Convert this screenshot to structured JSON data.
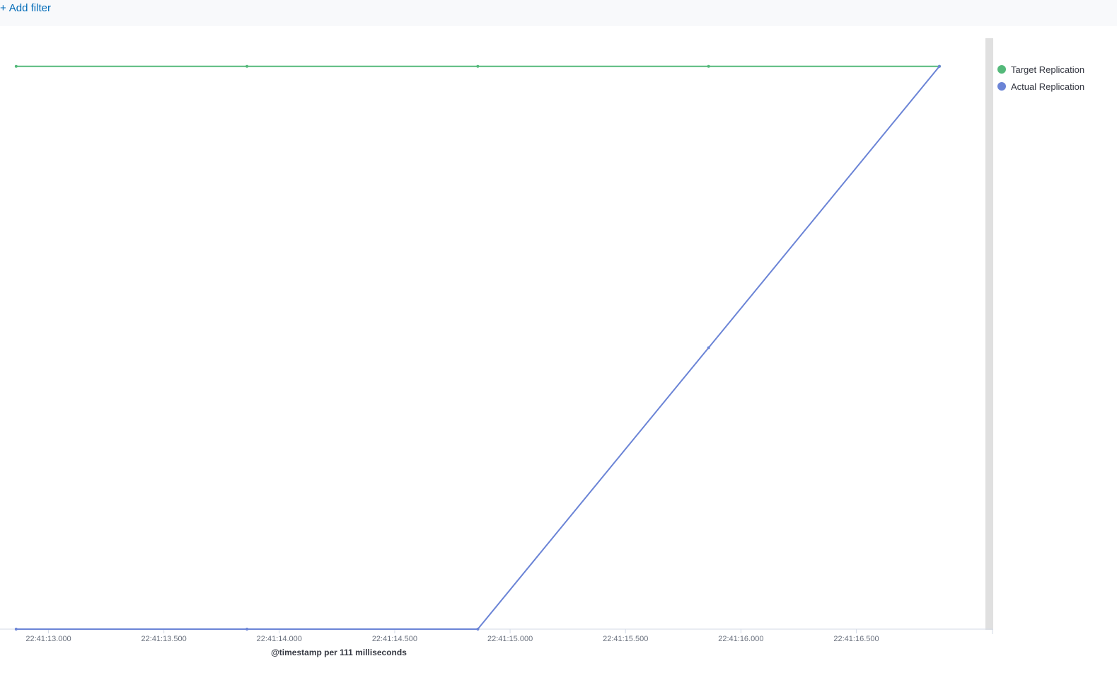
{
  "filter_bar": {
    "add_filter_label": "Add filter",
    "plus_icon": "+"
  },
  "colors": {
    "target": "#54b97a",
    "actual": "#6b84d6",
    "axis": "#d3dae6",
    "scroll_track": "#e0e0e0",
    "link": "#006bb8"
  },
  "chart_data": {
    "type": "line",
    "xlabel": "@timestamp per 111 milliseconds",
    "ylabel": "",
    "x_ticks": [
      "22:41:13.000",
      "22:41:13.500",
      "22:41:14.000",
      "22:41:14.500",
      "22:41:15.000",
      "22:41:15.500",
      "22:41:16.000",
      "22:41:16.500"
    ],
    "x_tick_seconds": [
      13.0,
      13.5,
      14.0,
      14.5,
      15.0,
      15.5,
      16.0,
      16.5
    ],
    "x_range_seconds": [
      12.79,
      17.09
    ],
    "x": [
      "22:41:12.860",
      "22:41:13.860",
      "22:41:14.860",
      "22:41:15.860",
      "22:41:16.860"
    ],
    "x_seconds": [
      12.86,
      13.86,
      14.86,
      15.86,
      16.86
    ],
    "ylim": [
      0,
      2.1
    ],
    "grid": false,
    "legend_position": "right",
    "series": [
      {
        "name": "Target Replication",
        "color": "#54b97a",
        "values": [
          2,
          2,
          2,
          2,
          2
        ]
      },
      {
        "name": "Actual Replication",
        "color": "#6b84d6",
        "values": [
          0,
          0,
          0,
          1,
          2
        ]
      }
    ]
  }
}
